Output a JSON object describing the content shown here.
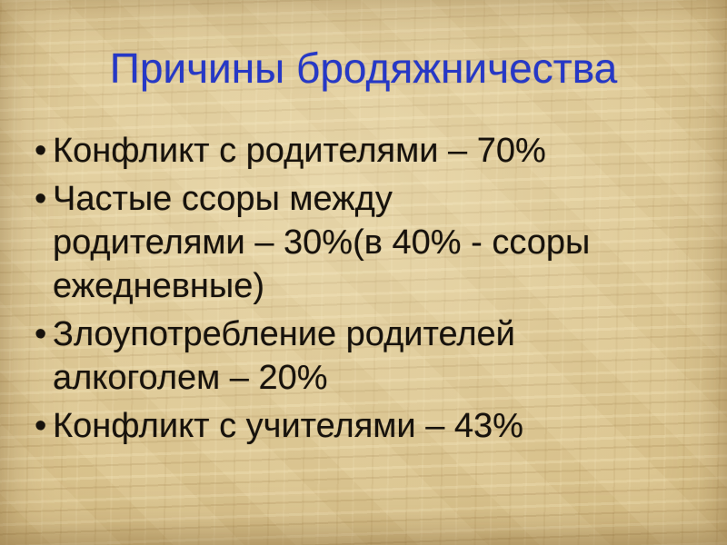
{
  "slide": {
    "title": "Причины бродяжничества",
    "bullet_char": "•",
    "bullets": [
      {
        "text": "Конфликт с родителями – 70%"
      },
      {
        "text": "Частые ссоры между\nродителями – 30%(в 40% - ссоры\nежедневные)"
      },
      {
        "text": "Злоупотребление родителей\nалкоголем – 20%"
      },
      {
        "text": "Конфликт с учителями – 43%"
      }
    ],
    "colors": {
      "title": "#2638c6",
      "body": "#17120c",
      "background": "#d9c28c"
    }
  }
}
